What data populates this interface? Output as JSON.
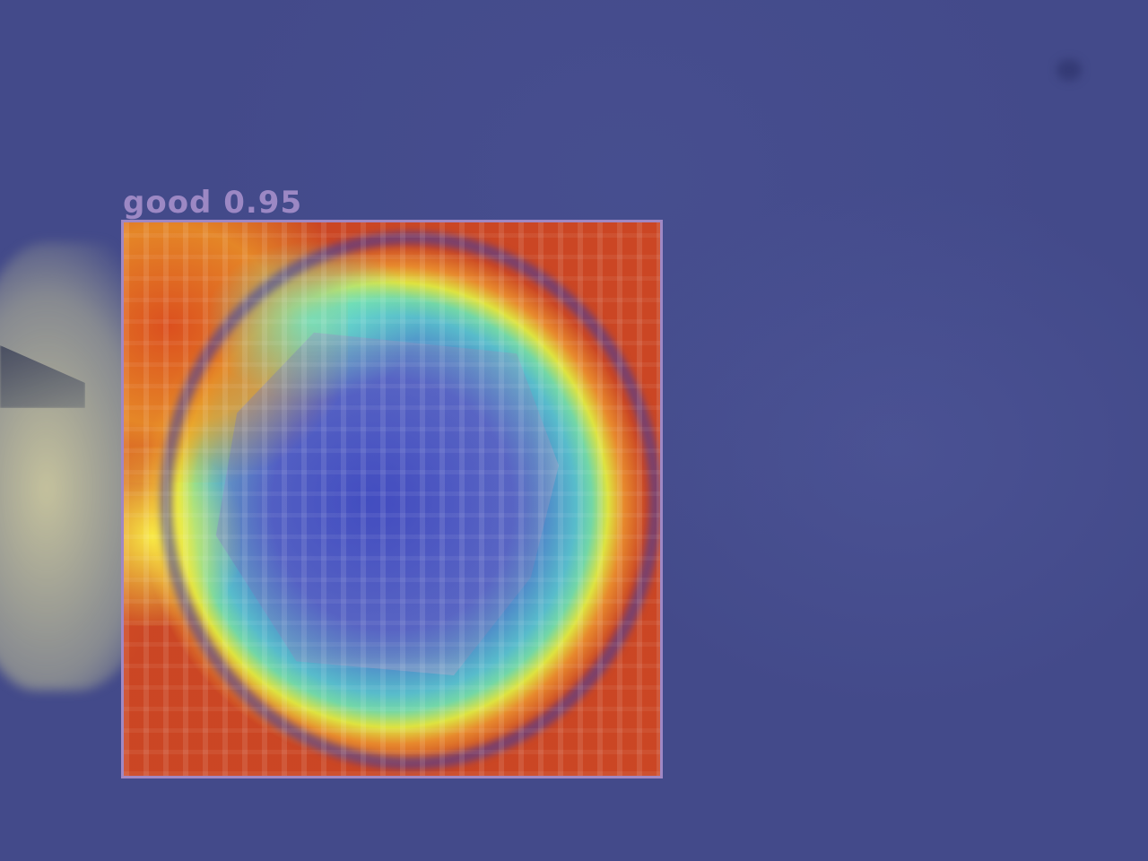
{
  "detection": {
    "label": "good 0.95",
    "class_name": "good",
    "confidence": 0.95
  },
  "colors": {
    "background": "#434a8a",
    "box_outline": "#a088c4",
    "label_text": "#9c88c4"
  }
}
